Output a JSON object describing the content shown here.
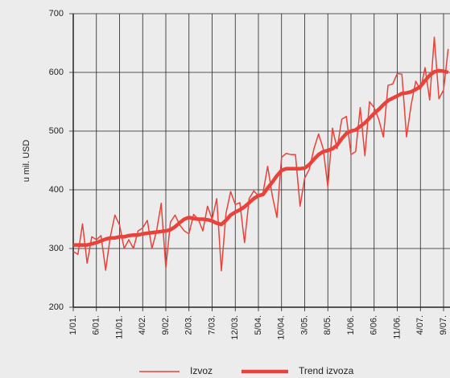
{
  "chart_data": {
    "type": "line",
    "y_label": "u mil. USD",
    "categories": [
      "1/01.",
      null,
      null,
      null,
      null,
      "6/01.",
      null,
      null,
      null,
      null,
      "11/01.",
      null,
      null,
      null,
      null,
      "4/02.",
      null,
      null,
      null,
      null,
      "9/02.",
      null,
      null,
      null,
      null,
      "2/03.",
      null,
      null,
      null,
      null,
      "7/03.",
      null,
      null,
      null,
      null,
      "12/03.",
      null,
      null,
      null,
      null,
      "5/04.",
      null,
      null,
      null,
      null,
      "10/04.",
      null,
      null,
      null,
      null,
      "3/05.",
      null,
      null,
      null,
      null,
      "8/05.",
      null,
      null,
      null,
      null,
      "1/06.",
      null,
      null,
      null,
      null,
      "6/06.",
      null,
      null,
      null,
      null,
      "11/06.",
      null,
      null,
      null,
      null,
      "4/07.",
      null,
      null,
      null,
      null,
      "9/07.",
      null
    ],
    "series": [
      {
        "name": "Izvoz",
        "color": "#e8423a",
        "width": 1.5,
        "values": [
          295,
          290,
          342,
          275,
          320,
          315,
          322,
          263,
          320,
          357,
          340,
          300,
          315,
          300,
          330,
          335,
          348,
          300,
          330,
          377,
          267,
          345,
          357,
          340,
          330,
          325,
          358,
          350,
          330,
          372,
          350,
          385,
          262,
          360,
          397,
          375,
          378,
          310,
          385,
          398,
          390,
          395,
          440,
          390,
          353,
          455,
          462,
          460,
          460,
          372,
          420,
          435,
          470,
          495,
          470,
          405,
          505,
          470,
          520,
          525,
          460,
          465,
          540,
          458,
          550,
          540,
          520,
          490,
          578,
          580,
          598,
          597,
          490,
          545,
          585,
          570,
          608,
          553,
          660,
          555,
          570,
          640
        ]
      },
      {
        "name": "Trend izvoza",
        "color": "#e8423a",
        "width": 4.5,
        "values": [
          306,
          306,
          306,
          306,
          308,
          310,
          313,
          316,
          318,
          318,
          320,
          320,
          322,
          323,
          323,
          325,
          326,
          327,
          328,
          329,
          330,
          332,
          337,
          344,
          350,
          353,
          351,
          350,
          350,
          349,
          347,
          343,
          341,
          348,
          357,
          362,
          366,
          371,
          378,
          385,
          390,
          392,
          403,
          413,
          424,
          433,
          436,
          436,
          436,
          436,
          437,
          443,
          452,
          460,
          465,
          467,
          470,
          476,
          487,
          496,
          500,
          502,
          508,
          514,
          522,
          530,
          537,
          545,
          552,
          556,
          560,
          564,
          565,
          567,
          571,
          576,
          586,
          595,
          601,
          603,
          602,
          600
        ]
      }
    ],
    "ylim": [
      200,
      700
    ],
    "yticks": [
      200,
      300,
      400,
      500,
      600,
      700
    ],
    "grid": true,
    "legend": "bottom"
  }
}
